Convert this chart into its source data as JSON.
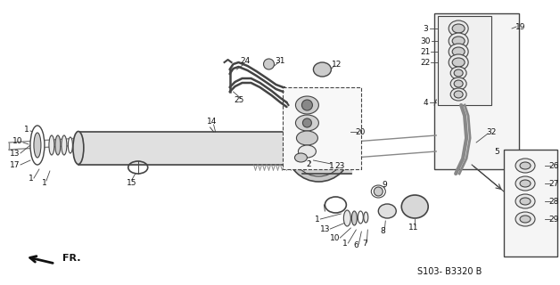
{
  "bg_color": "#ffffff",
  "diagram_code": "S103- B3320 B",
  "fig_width": 6.28,
  "fig_height": 3.2,
  "dpi": 100
}
